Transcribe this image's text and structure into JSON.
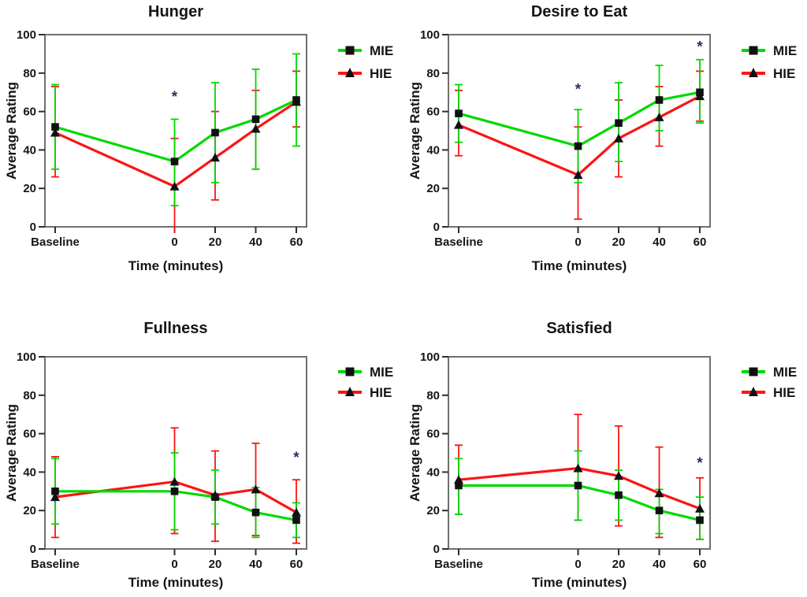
{
  "figure": {
    "background": "#ffffff",
    "y_tick_labels": [
      "0",
      "20",
      "40",
      "60",
      "80",
      "100"
    ],
    "colors": {
      "mie": "#00d900",
      "hie": "#fb1414",
      "marker": "#101014",
      "frame": "#6f6f6f",
      "tick": "#2e2e2e",
      "text": "#15151a",
      "annotation": "#273352"
    },
    "legend_position": "right"
  },
  "chart_data": [
    {
      "type": "line",
      "title": "Hunger",
      "xlabel": "Time (minutes)",
      "ylabel": "Average Rating",
      "x_labels": [
        "Baseline",
        "0",
        "20",
        "40",
        "60"
      ],
      "x_values": [
        -60,
        0,
        20,
        40,
        60
      ],
      "ylim": [
        0,
        100
      ],
      "grid": false,
      "series": [
        {
          "name": "MIE",
          "color": "#00d900",
          "marker": "square",
          "values": [
            52,
            34,
            49,
            56,
            66
          ],
          "err_low": [
            30,
            11,
            23,
            30,
            42
          ],
          "err_high": [
            74,
            56,
            75,
            82,
            90
          ]
        },
        {
          "name": "HIE",
          "color": "#fb1414",
          "marker": "triangle",
          "values": [
            49,
            21,
            36,
            51,
            65
          ],
          "err_low": [
            26,
            -4,
            14,
            30,
            52
          ],
          "err_high": [
            73,
            46,
            60,
            71,
            81
          ]
        }
      ],
      "annotations": [
        {
          "x": 0,
          "y": 68,
          "text": "*"
        }
      ]
    },
    {
      "type": "line",
      "title": "Desire to Eat",
      "xlabel": "Time (minutes)",
      "ylabel": "Average Rating",
      "x_labels": [
        "Baseline",
        "0",
        "20",
        "40",
        "60"
      ],
      "x_values": [
        -60,
        0,
        20,
        40,
        60
      ],
      "ylim": [
        0,
        100
      ],
      "grid": false,
      "series": [
        {
          "name": "MIE",
          "color": "#00d900",
          "marker": "square",
          "values": [
            59,
            42,
            54,
            66,
            70
          ],
          "err_low": [
            44,
            23,
            34,
            50,
            54
          ],
          "err_high": [
            74,
            61,
            75,
            84,
            87
          ]
        },
        {
          "name": "HIE",
          "color": "#fb1414",
          "marker": "triangle",
          "values": [
            53,
            27,
            46,
            57,
            68
          ],
          "err_low": [
            37,
            4,
            26,
            42,
            55
          ],
          "err_high": [
            71,
            52,
            66,
            73,
            81
          ]
        }
      ],
      "annotations": [
        {
          "x": 0,
          "y": 72,
          "text": "*"
        },
        {
          "x": 60,
          "y": 94,
          "text": "*"
        }
      ]
    },
    {
      "type": "line",
      "title": "Fullness",
      "xlabel": "Time (minutes)",
      "ylabel": "Average Rating",
      "x_labels": [
        "Baseline",
        "0",
        "20",
        "40",
        "60"
      ],
      "x_values": [
        -60,
        0,
        20,
        40,
        60
      ],
      "ylim": [
        0,
        100
      ],
      "grid": false,
      "series": [
        {
          "name": "MIE",
          "color": "#00d900",
          "marker": "square",
          "values": [
            30,
            30,
            27,
            19,
            15
          ],
          "err_low": [
            13,
            10,
            13,
            6,
            6
          ],
          "err_high": [
            47,
            50,
            41,
            32,
            24
          ]
        },
        {
          "name": "HIE",
          "color": "#fb1414",
          "marker": "triangle",
          "values": [
            27,
            35,
            28,
            31,
            19
          ],
          "err_low": [
            6,
            8,
            4,
            7,
            3
          ],
          "err_high": [
            48,
            63,
            51,
            55,
            36
          ]
        }
      ],
      "annotations": [
        {
          "x": 60,
          "y": 48,
          "text": "*"
        }
      ]
    },
    {
      "type": "line",
      "title": "Satisfied",
      "xlabel": "Time (minutes)",
      "ylabel": "Average Rating",
      "x_labels": [
        "Baseline",
        "0",
        "20",
        "40",
        "60"
      ],
      "x_values": [
        -60,
        0,
        20,
        40,
        60
      ],
      "ylim": [
        0,
        100
      ],
      "grid": false,
      "series": [
        {
          "name": "MIE",
          "color": "#00d900",
          "marker": "square",
          "values": [
            33,
            33,
            28,
            20,
            15
          ],
          "err_low": [
            18,
            15,
            15,
            8,
            5
          ],
          "err_high": [
            47,
            51,
            41,
            31,
            27
          ]
        },
        {
          "name": "HIE",
          "color": "#fb1414",
          "marker": "triangle",
          "values": [
            36,
            42,
            38,
            29,
            21
          ],
          "err_low": [
            18,
            15,
            12,
            6,
            5
          ],
          "err_high": [
            54,
            70,
            64,
            53,
            37
          ]
        }
      ],
      "annotations": [
        {
          "x": 60,
          "y": 45,
          "text": "*"
        }
      ]
    }
  ]
}
